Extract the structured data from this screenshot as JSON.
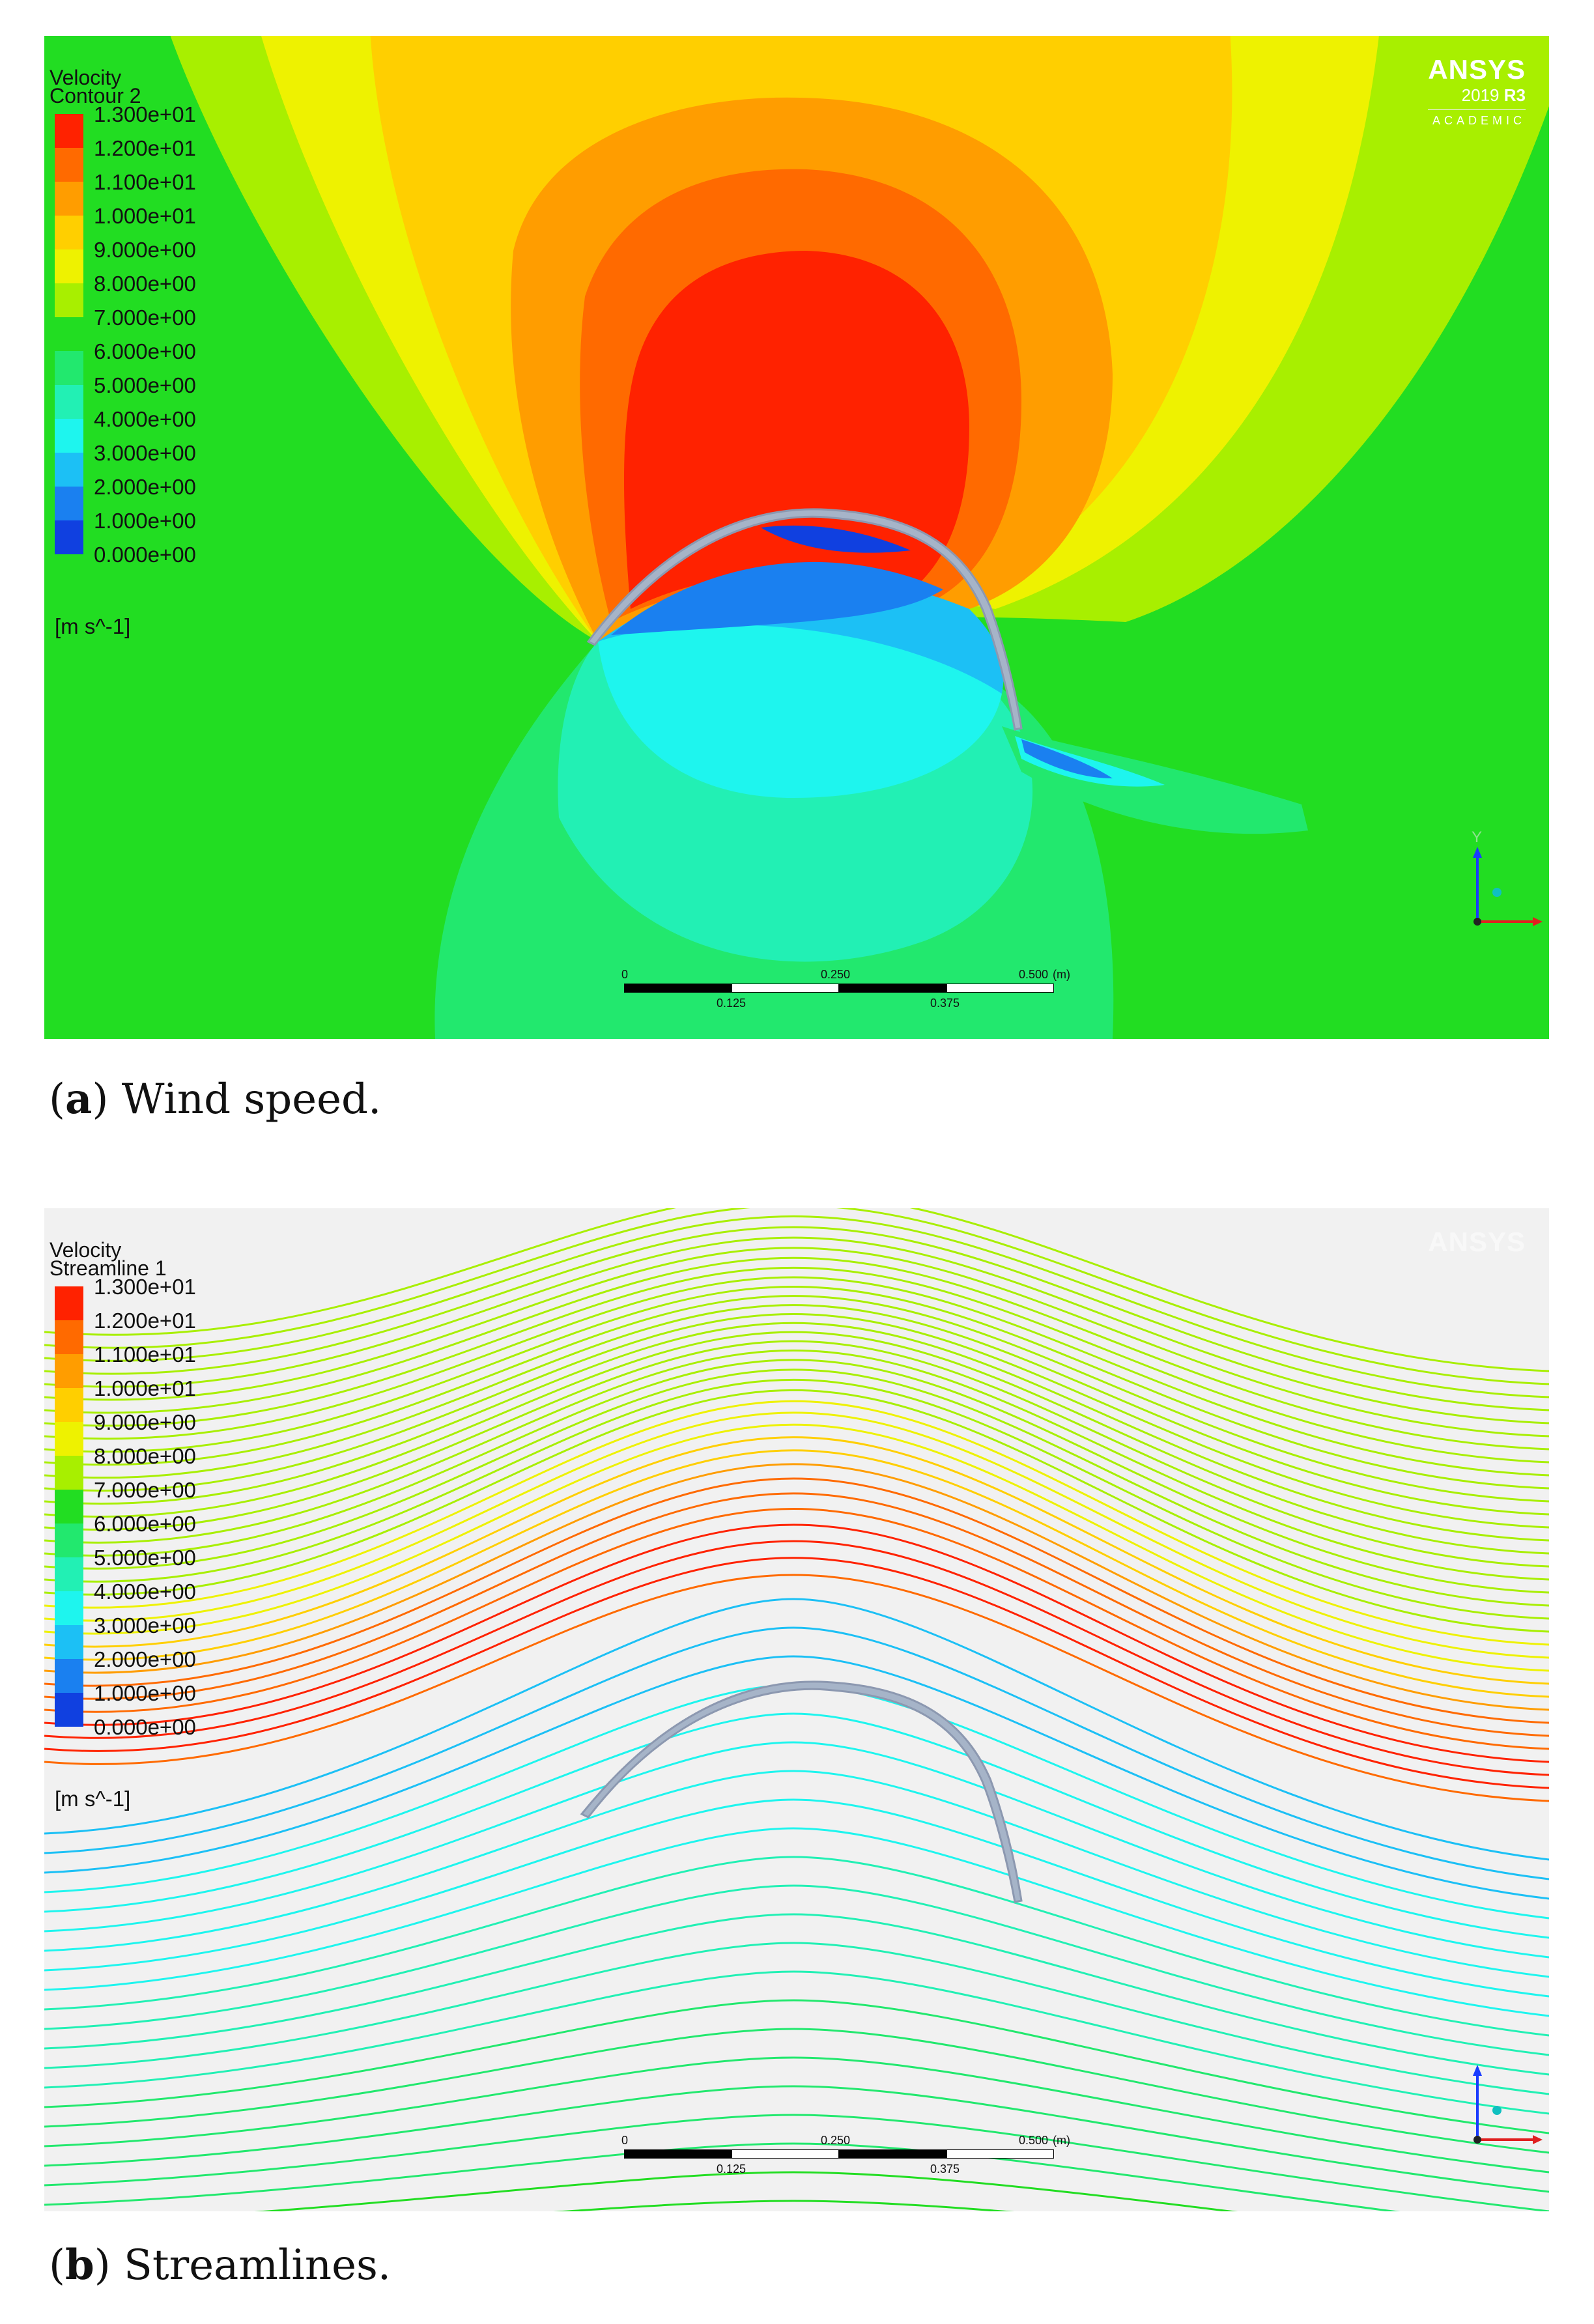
{
  "panel_a": {
    "legend_title_1": "Velocity",
    "legend_title_2": "Contour 2",
    "unit": "[m s^-1]",
    "brand": "ANSYS",
    "brand_version_year": "2019",
    "brand_version_rel": "R3",
    "brand_edition": "ACADEMIC",
    "scale_labels_top": [
      "0",
      "0.250",
      "0.500",
      "(m)"
    ],
    "scale_labels_bottom": [
      "0.125",
      "0.375"
    ],
    "axis_x": "X",
    "axis_y": "Y",
    "caption_letter": "a",
    "caption_text": " Wind speed."
  },
  "panel_b": {
    "legend_title_1": "Velocity",
    "legend_title_2": "Streamline 1",
    "unit": "[m s^-1]",
    "brand": "ANSYS",
    "scale_labels_top": [
      "0",
      "0.250",
      "0.500",
      "(m)"
    ],
    "scale_labels_bottom": [
      "0.125",
      "0.375"
    ],
    "axis_x": "X",
    "axis_y": "Y",
    "caption_letter": "b",
    "caption_text": " Streamlines."
  },
  "legend_levels": [
    {
      "label": "1.300e+01",
      "color": "#ff2200"
    },
    {
      "label": "1.200e+01",
      "color": "#ff6a00"
    },
    {
      "label": "1.100e+01",
      "color": "#ff9d00"
    },
    {
      "label": "1.000e+01",
      "color": "#ffcf00"
    },
    {
      "label": "9.000e+00",
      "color": "#eef200"
    },
    {
      "label": "8.000e+00",
      "color": "#a8ef00"
    },
    {
      "label": "7.000e+00",
      "color": "#22dd22"
    },
    {
      "label": "6.000e+00",
      "color": "#22e86e"
    },
    {
      "label": "5.000e+00",
      "color": "#22f0b4"
    },
    {
      "label": "4.000e+00",
      "color": "#1ef5ee"
    },
    {
      "label": "3.000e+00",
      "color": "#1cc0f5"
    },
    {
      "label": "2.000e+00",
      "color": "#1a80f0"
    },
    {
      "label": "1.000e+00",
      "color": "#1040e0"
    },
    {
      "label": "0.000e+00",
      "color": "#1010d0"
    }
  ]
}
